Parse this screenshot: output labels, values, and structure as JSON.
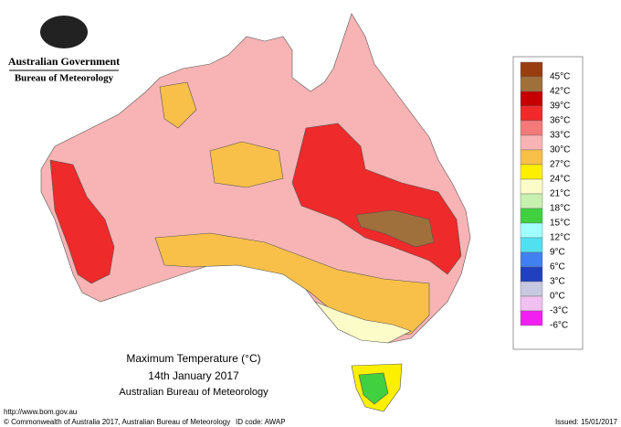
{
  "header": {
    "government": "Australian Government",
    "agency": "Bureau of Meteorology"
  },
  "legend": {
    "items": [
      {
        "label": "45°C",
        "color": "#993c10"
      },
      {
        "label": "42°C",
        "color": "#a0703c"
      },
      {
        "label": "39°C",
        "color": "#c40000"
      },
      {
        "label": "36°C",
        "color": "#ee2a2a"
      },
      {
        "label": "33°C",
        "color": "#f47a7a"
      },
      {
        "label": "30°C",
        "color": "#f8b4b4"
      },
      {
        "label": "27°C",
        "color": "#f8c048"
      },
      {
        "label": "24°C",
        "color": "#fcf000"
      },
      {
        "label": "21°C",
        "color": "#fcfcc8"
      },
      {
        "label": "18°C",
        "color": "#c8f0b0"
      },
      {
        "label": "15°C",
        "color": "#40d040"
      },
      {
        "label": "12°C",
        "color": "#a0ffff"
      },
      {
        "label": "9°C",
        "color": "#50e0f0"
      },
      {
        "label": "6°C",
        "color": "#4080f0"
      },
      {
        "label": "3°C",
        "color": "#2040c0"
      },
      {
        "label": "0°C",
        "color": "#c8c8e0"
      },
      {
        "label": "-3°C",
        "color": "#f0c0f0"
      },
      {
        "label": "-6°C",
        "color": "#f020f0"
      }
    ]
  },
  "title": {
    "line1": "Maximum Temperature (°C)",
    "line2": "14th January 2017",
    "line3": "Australian Bureau of Meteorology"
  },
  "footer": {
    "url": "http://www.bom.gov.au",
    "copyright": "© Commonwealth of Australia 2017, Australian Bureau of Meteorology",
    "id": "ID code: AWAP",
    "issued": "Issued: 15/01/2017"
  }
}
